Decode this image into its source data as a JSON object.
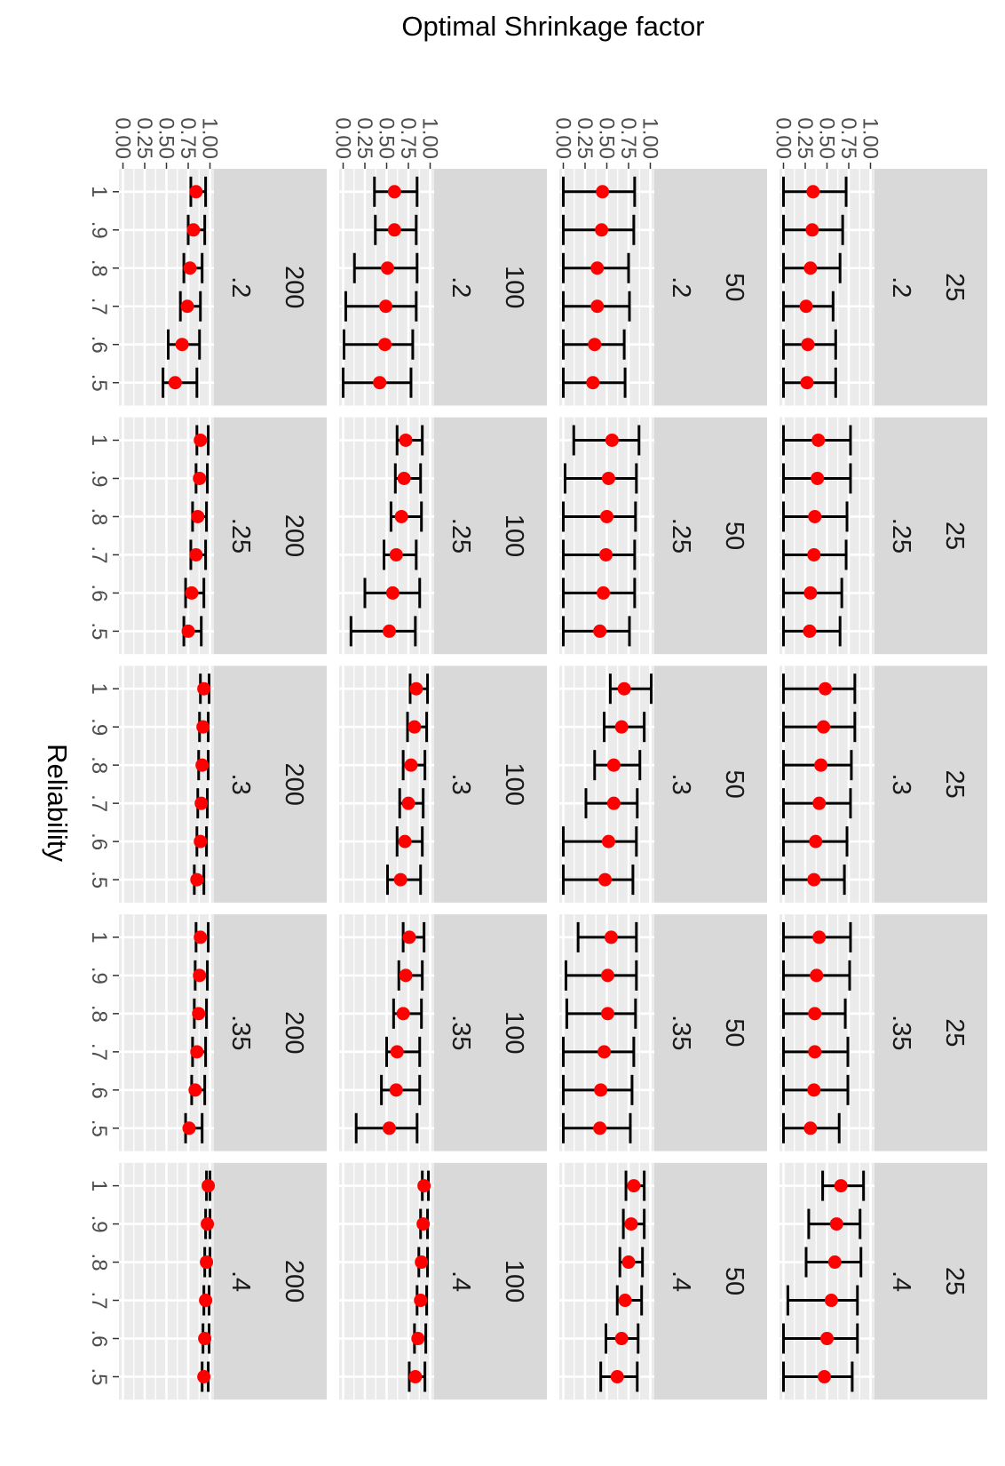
{
  "chart_data": {
    "type": "errorbar",
    "orientation": "rotated 90 degrees clockwise",
    "ylabel": "Optimal Shrinkage factor",
    "xlabel": "Reliability",
    "ylim": [
      0,
      1
    ],
    "y_ticks": [
      "0.00",
      "0.25",
      "0.50",
      "0.75",
      "1.00"
    ],
    "x_categories": [
      "1",
      ".9",
      ".8",
      ".7",
      ".6",
      ".5"
    ],
    "facet_rows": [
      "25",
      "50",
      "100",
      "200"
    ],
    "facet_cols": [
      ".2",
      ".25",
      ".3",
      ".35",
      ".4"
    ],
    "colors": {
      "point": "#ff0000",
      "errorbar": "#000000",
      "strip_bg": "#d9d9d9",
      "panel_bg": "#ebebeb",
      "grid": "#ffffff"
    },
    "panels": [
      {
        "row": "25",
        "col": ".2",
        "values": [
          {
            "x": "1",
            "y": 0.34,
            "low": 0.0,
            "high": 0.72
          },
          {
            "x": ".9",
            "y": 0.33,
            "low": 0.0,
            "high": 0.68
          },
          {
            "x": ".8",
            "y": 0.31,
            "low": 0.0,
            "high": 0.65
          },
          {
            "x": ".7",
            "y": 0.26,
            "low": 0.0,
            "high": 0.57
          },
          {
            "x": ".6",
            "y": 0.28,
            "low": 0.0,
            "high": 0.6
          },
          {
            "x": ".5",
            "y": 0.27,
            "low": 0.0,
            "high": 0.6
          }
        ]
      },
      {
        "row": "25",
        "col": ".25",
        "values": [
          {
            "x": "1",
            "y": 0.4,
            "low": 0.0,
            "high": 0.77
          },
          {
            "x": ".9",
            "y": 0.39,
            "low": 0.0,
            "high": 0.77
          },
          {
            "x": ".8",
            "y": 0.36,
            "low": 0.0,
            "high": 0.73
          },
          {
            "x": ".7",
            "y": 0.35,
            "low": 0.0,
            "high": 0.72
          },
          {
            "x": ".6",
            "y": 0.31,
            "low": 0.0,
            "high": 0.67
          },
          {
            "x": ".5",
            "y": 0.3,
            "low": 0.0,
            "high": 0.65
          }
        ]
      },
      {
        "row": "25",
        "col": ".3",
        "values": [
          {
            "x": "1",
            "y": 0.48,
            "low": 0.0,
            "high": 0.82
          },
          {
            "x": ".9",
            "y": 0.46,
            "low": 0.0,
            "high": 0.82
          },
          {
            "x": ".8",
            "y": 0.43,
            "low": 0.0,
            "high": 0.78
          },
          {
            "x": ".7",
            "y": 0.41,
            "low": 0.0,
            "high": 0.77
          },
          {
            "x": ".6",
            "y": 0.37,
            "low": 0.0,
            "high": 0.73
          },
          {
            "x": ".5",
            "y": 0.35,
            "low": 0.0,
            "high": 0.7
          }
        ]
      },
      {
        "row": "25",
        "col": ".35",
        "values": [
          {
            "x": "1",
            "y": 0.41,
            "low": 0.0,
            "high": 0.77
          },
          {
            "x": ".9",
            "y": 0.38,
            "low": 0.0,
            "high": 0.76
          },
          {
            "x": ".8",
            "y": 0.36,
            "low": 0.0,
            "high": 0.71
          },
          {
            "x": ".7",
            "y": 0.36,
            "low": 0.0,
            "high": 0.74
          },
          {
            "x": ".6",
            "y": 0.35,
            "low": 0.0,
            "high": 0.74
          },
          {
            "x": ".5",
            "y": 0.31,
            "low": 0.0,
            "high": 0.64
          }
        ]
      },
      {
        "row": "25",
        "col": ".4",
        "values": [
          {
            "x": "1",
            "y": 0.66,
            "low": 0.45,
            "high": 0.92
          },
          {
            "x": ".9",
            "y": 0.61,
            "low": 0.29,
            "high": 0.88
          },
          {
            "x": ".8",
            "y": 0.59,
            "low": 0.26,
            "high": 0.89
          },
          {
            "x": ".7",
            "y": 0.55,
            "low": 0.05,
            "high": 0.85
          },
          {
            "x": ".6",
            "y": 0.5,
            "low": 0.0,
            "high": 0.85
          },
          {
            "x": ".5",
            "y": 0.47,
            "low": 0.0,
            "high": 0.79
          }
        ]
      },
      {
        "row": "50",
        "col": ".2",
        "values": [
          {
            "x": "1",
            "y": 0.45,
            "low": 0.0,
            "high": 0.82
          },
          {
            "x": ".9",
            "y": 0.44,
            "low": 0.0,
            "high": 0.81
          },
          {
            "x": ".8",
            "y": 0.39,
            "low": 0.0,
            "high": 0.75
          },
          {
            "x": ".7",
            "y": 0.39,
            "low": 0.0,
            "high": 0.76
          },
          {
            "x": ".6",
            "y": 0.36,
            "low": 0.0,
            "high": 0.7
          },
          {
            "x": ".5",
            "y": 0.34,
            "low": 0.0,
            "high": 0.71
          }
        ]
      },
      {
        "row": "50",
        "col": ".25",
        "values": [
          {
            "x": "1",
            "y": 0.56,
            "low": 0.12,
            "high": 0.87
          },
          {
            "x": ".9",
            "y": 0.52,
            "low": 0.02,
            "high": 0.84
          },
          {
            "x": ".8",
            "y": 0.5,
            "low": 0.0,
            "high": 0.83
          },
          {
            "x": ".7",
            "y": 0.49,
            "low": 0.0,
            "high": 0.82
          },
          {
            "x": ".6",
            "y": 0.46,
            "low": 0.0,
            "high": 0.82
          },
          {
            "x": ".5",
            "y": 0.42,
            "low": 0.0,
            "high": 0.76
          }
        ]
      },
      {
        "row": "50",
        "col": ".3",
        "values": [
          {
            "x": "1",
            "y": 0.7,
            "low": 0.54,
            "high": 1.01
          },
          {
            "x": ".9",
            "y": 0.67,
            "low": 0.47,
            "high": 0.93
          },
          {
            "x": ".8",
            "y": 0.58,
            "low": 0.36,
            "high": 0.88
          },
          {
            "x": ".7",
            "y": 0.58,
            "low": 0.26,
            "high": 0.85
          },
          {
            "x": ".6",
            "y": 0.52,
            "low": 0.0,
            "high": 0.84
          },
          {
            "x": ".5",
            "y": 0.48,
            "low": 0.0,
            "high": 0.8
          }
        ]
      },
      {
        "row": "50",
        "col": ".35",
        "values": [
          {
            "x": "1",
            "y": 0.55,
            "low": 0.17,
            "high": 0.84
          },
          {
            "x": ".9",
            "y": 0.51,
            "low": 0.03,
            "high": 0.84
          },
          {
            "x": ".8",
            "y": 0.51,
            "low": 0.04,
            "high": 0.83
          },
          {
            "x": ".7",
            "y": 0.47,
            "low": 0.0,
            "high": 0.81
          },
          {
            "x": ".6",
            "y": 0.43,
            "low": 0.0,
            "high": 0.79
          },
          {
            "x": ".5",
            "y": 0.42,
            "low": 0.0,
            "high": 0.77
          }
        ]
      },
      {
        "row": "50",
        "col": ".4",
        "values": [
          {
            "x": "1",
            "y": 0.81,
            "low": 0.72,
            "high": 0.93
          },
          {
            "x": ".9",
            "y": 0.78,
            "low": 0.69,
            "high": 0.93
          },
          {
            "x": ".8",
            "y": 0.75,
            "low": 0.65,
            "high": 0.91
          },
          {
            "x": ".7",
            "y": 0.71,
            "low": 0.62,
            "high": 0.9
          },
          {
            "x": ".6",
            "y": 0.67,
            "low": 0.49,
            "high": 0.86
          },
          {
            "x": ".5",
            "y": 0.62,
            "low": 0.43,
            "high": 0.85
          }
        ]
      },
      {
        "row": "100",
        "col": ".2",
        "values": [
          {
            "x": "1",
            "y": 0.59,
            "low": 0.36,
            "high": 0.85
          },
          {
            "x": ".9",
            "y": 0.59,
            "low": 0.37,
            "high": 0.84
          },
          {
            "x": ".8",
            "y": 0.51,
            "low": 0.13,
            "high": 0.85
          },
          {
            "x": ".7",
            "y": 0.49,
            "low": 0.03,
            "high": 0.84
          },
          {
            "x": ".6",
            "y": 0.48,
            "low": 0.01,
            "high": 0.8
          },
          {
            "x": ".5",
            "y": 0.42,
            "low": 0.0,
            "high": 0.78
          }
        ]
      },
      {
        "row": "100",
        "col": ".25",
        "values": [
          {
            "x": "1",
            "y": 0.72,
            "low": 0.62,
            "high": 0.91
          },
          {
            "x": ".9",
            "y": 0.7,
            "low": 0.6,
            "high": 0.89
          },
          {
            "x": ".8",
            "y": 0.67,
            "low": 0.55,
            "high": 0.9
          },
          {
            "x": ".7",
            "y": 0.61,
            "low": 0.47,
            "high": 0.84
          },
          {
            "x": ".6",
            "y": 0.57,
            "low": 0.25,
            "high": 0.88
          },
          {
            "x": ".5",
            "y": 0.53,
            "low": 0.09,
            "high": 0.83
          }
        ]
      },
      {
        "row": "100",
        "col": ".3",
        "values": [
          {
            "x": "1",
            "y": 0.84,
            "low": 0.77,
            "high": 0.97
          },
          {
            "x": ".9",
            "y": 0.82,
            "low": 0.74,
            "high": 0.96
          },
          {
            "x": ".8",
            "y": 0.78,
            "low": 0.69,
            "high": 0.94
          },
          {
            "x": ".7",
            "y": 0.75,
            "low": 0.65,
            "high": 0.92
          },
          {
            "x": ".6",
            "y": 0.71,
            "low": 0.62,
            "high": 0.91
          },
          {
            "x": ".5",
            "y": 0.66,
            "low": 0.51,
            "high": 0.89
          }
        ]
      },
      {
        "row": "100",
        "col": ".35",
        "values": [
          {
            "x": "1",
            "y": 0.76,
            "low": 0.69,
            "high": 0.93
          },
          {
            "x": ".9",
            "y": 0.72,
            "low": 0.64,
            "high": 0.91
          },
          {
            "x": ".8",
            "y": 0.69,
            "low": 0.58,
            "high": 0.9
          },
          {
            "x": ".7",
            "y": 0.62,
            "low": 0.5,
            "high": 0.88
          },
          {
            "x": ".6",
            "y": 0.61,
            "low": 0.44,
            "high": 0.88
          },
          {
            "x": ".5",
            "y": 0.53,
            "low": 0.15,
            "high": 0.85
          }
        ]
      },
      {
        "row": "100",
        "col": ".4",
        "values": [
          {
            "x": "1",
            "y": 0.93,
            "low": 0.91,
            "high": 0.98
          },
          {
            "x": ".9",
            "y": 0.92,
            "low": 0.89,
            "high": 0.97
          },
          {
            "x": ".8",
            "y": 0.9,
            "low": 0.87,
            "high": 0.97
          },
          {
            "x": ".7",
            "y": 0.89,
            "low": 0.85,
            "high": 0.96
          },
          {
            "x": ".6",
            "y": 0.86,
            "low": 0.82,
            "high": 0.95
          },
          {
            "x": ".5",
            "y": 0.83,
            "low": 0.76,
            "high": 0.94
          }
        ]
      },
      {
        "row": "200",
        "col": ".2",
        "values": [
          {
            "x": "1",
            "y": 0.84,
            "low": 0.78,
            "high": 0.95
          },
          {
            "x": ".9",
            "y": 0.81,
            "low": 0.75,
            "high": 0.94
          },
          {
            "x": ".8",
            "y": 0.77,
            "low": 0.7,
            "high": 0.91
          },
          {
            "x": ".7",
            "y": 0.74,
            "low": 0.66,
            "high": 0.89
          },
          {
            "x": ".6",
            "y": 0.68,
            "low": 0.52,
            "high": 0.88
          },
          {
            "x": ".5",
            "y": 0.6,
            "low": 0.46,
            "high": 0.85
          }
        ]
      },
      {
        "row": "200",
        "col": ".25",
        "values": [
          {
            "x": "1",
            "y": 0.89,
            "low": 0.85,
            "high": 0.98
          },
          {
            "x": ".9",
            "y": 0.88,
            "low": 0.84,
            "high": 0.97
          },
          {
            "x": ".8",
            "y": 0.86,
            "low": 0.8,
            "high": 0.96
          },
          {
            "x": ".7",
            "y": 0.84,
            "low": 0.78,
            "high": 0.95
          },
          {
            "x": ".6",
            "y": 0.79,
            "low": 0.72,
            "high": 0.93
          },
          {
            "x": ".5",
            "y": 0.75,
            "low": 0.7,
            "high": 0.9
          }
        ]
      },
      {
        "row": "200",
        "col": ".3",
        "values": [
          {
            "x": "1",
            "y": 0.93,
            "low": 0.89,
            "high": 0.99
          },
          {
            "x": ".9",
            "y": 0.92,
            "low": 0.88,
            "high": 0.98
          },
          {
            "x": ".8",
            "y": 0.91,
            "low": 0.87,
            "high": 0.98
          },
          {
            "x": ".7",
            "y": 0.9,
            "low": 0.86,
            "high": 0.97
          },
          {
            "x": ".6",
            "y": 0.89,
            "low": 0.85,
            "high": 0.96
          },
          {
            "x": ".5",
            "y": 0.85,
            "low": 0.82,
            "high": 0.93
          }
        ]
      },
      {
        "row": "200",
        "col": ".35",
        "values": [
          {
            "x": "1",
            "y": 0.89,
            "low": 0.84,
            "high": 0.98
          },
          {
            "x": ".9",
            "y": 0.88,
            "low": 0.83,
            "high": 0.97
          },
          {
            "x": ".8",
            "y": 0.87,
            "low": 0.82,
            "high": 0.96
          },
          {
            "x": ".7",
            "y": 0.85,
            "low": 0.8,
            "high": 0.95
          },
          {
            "x": ".6",
            "y": 0.83,
            "low": 0.79,
            "high": 0.94
          },
          {
            "x": ".5",
            "y": 0.76,
            "low": 0.72,
            "high": 0.91
          }
        ]
      },
      {
        "row": "200",
        "col": ".4",
        "values": [
          {
            "x": "1",
            "y": 0.98,
            "low": 0.96,
            "high": 1.0
          },
          {
            "x": ".9",
            "y": 0.97,
            "low": 0.95,
            "high": 1.0
          },
          {
            "x": ".8",
            "y": 0.96,
            "low": 0.94,
            "high": 1.0
          },
          {
            "x": ".7",
            "y": 0.95,
            "low": 0.93,
            "high": 0.99
          },
          {
            "x": ".6",
            "y": 0.94,
            "low": 0.92,
            "high": 0.99
          },
          {
            "x": ".5",
            "y": 0.93,
            "low": 0.91,
            "high": 0.98
          }
        ]
      }
    ]
  }
}
